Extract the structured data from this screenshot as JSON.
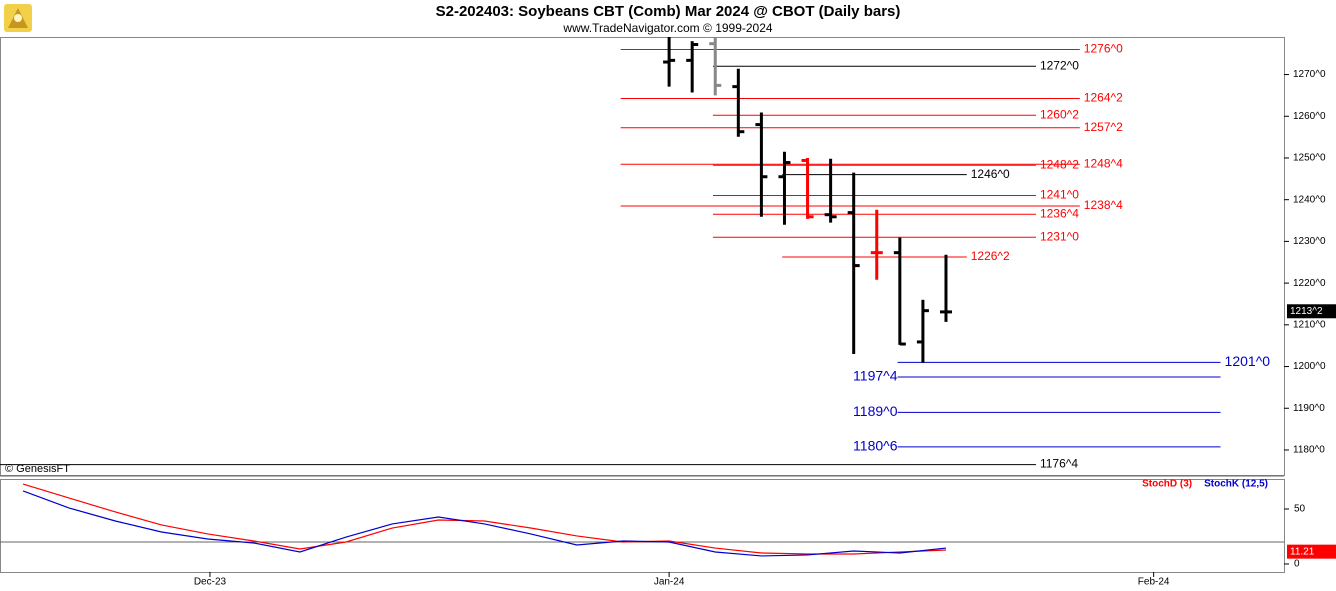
{
  "chart_data": [
    {
      "type": "ohlc",
      "title": "S2-202403:  Soybeans CBT (Comb) Mar 2024 @ CBOT  (Daily bars)",
      "subtitle": "www.TradeNavigator.com © 1999-2024",
      "annotation": "© GenesisFT",
      "x": [
        29,
        30,
        31,
        32,
        33,
        34,
        35,
        36,
        37,
        38,
        39,
        40,
        41
      ],
      "open": [
        1273,
        1273.4,
        1277.4,
        1267.1,
        1258,
        1245.5,
        1249.4,
        1236.4,
        1236.9,
        1227.3,
        1227.3,
        1205.9,
        1213.1
      ],
      "high": [
        1279,
        1278,
        1279,
        1271.4,
        1260.9,
        1251.5,
        1250,
        1249.8,
        1246.5,
        1237.6,
        1230.9,
        1216,
        1226.8
      ],
      "low": [
        1267.1,
        1265.7,
        1265,
        1255.1,
        1235.9,
        1234,
        1235.4,
        1234.5,
        1203,
        1220.8,
        1205.2,
        1200.9,
        1210.7
      ],
      "close": [
        1273.4,
        1277.2,
        1267.4,
        1256.3,
        1245.5,
        1248.9,
        1235.9,
        1235.9,
        1224.2,
        1227.3,
        1205.4,
        1213.4,
        1213.1
      ],
      "bar_colors": [
        "#000000",
        "#000000",
        "#888888",
        "#000000",
        "#000000",
        "#000000",
        "#ff0000",
        "#000000",
        "#000000",
        "#ff0000",
        "#000000",
        "#000000",
        "#000000"
      ],
      "levels": [
        {
          "value": 1276,
          "label": "1276^0",
          "color": "#ff0000",
          "from": 26.9,
          "to": 46.8,
          "label_at": "end"
        },
        {
          "value": 1272,
          "label": "1272^0",
          "color": "#000000",
          "from": 30.9,
          "to": 44.9,
          "label_at": "end"
        },
        {
          "value": 1264.25,
          "label": "1264^2",
          "color": "#ff0000",
          "from": 26.9,
          "to": 46.8,
          "label_at": "end"
        },
        {
          "value": 1260.25,
          "label": "1260^2",
          "color": "#ff0000",
          "from": 30.9,
          "to": 44.9,
          "label_at": "end"
        },
        {
          "value": 1257.25,
          "label": "1257^2",
          "color": "#ff0000",
          "from": 26.9,
          "to": 46.8,
          "label_at": "end"
        },
        {
          "value": 1248.25,
          "label": "1248^2",
          "color": "#ff0000",
          "from": 30.9,
          "to": 44.9,
          "label_at": "end"
        },
        {
          "value": 1248.5,
          "label": "1248^4",
          "color": "#ff0000",
          "from": 26.9,
          "to": 46.8,
          "label_at": "end"
        },
        {
          "value": 1246,
          "label": "1246^0",
          "color": "#000000",
          "from": 33.9,
          "to": 41.9,
          "label_at": "end"
        },
        {
          "value": 1241,
          "label": "1241^0",
          "color": "#ff0000",
          "from": 30.9,
          "to": 44.9,
          "label_at": "end"
        },
        {
          "value": 1238.5,
          "label": "1238^4",
          "color": "#ff0000",
          "from": 26.9,
          "to": 46.8,
          "label_at": "end"
        },
        {
          "value": 1236.5,
          "label": "1236^4",
          "color": "#ff0000",
          "from": 30.9,
          "to": 44.9,
          "label_at": "end"
        },
        {
          "value": 1231,
          "label": "1231^0",
          "color": "#ff0000",
          "from": 30.9,
          "to": 44.9,
          "label_at": "end"
        },
        {
          "value": 1226.25,
          "label": "1226^2",
          "color": "#ff0000",
          "from": 33.9,
          "to": 41.9,
          "label_at": "end"
        },
        {
          "value": 1201,
          "label": "1201^0",
          "color": "#0000cc",
          "from": 38.9,
          "to": 52.9,
          "label_at": "end"
        },
        {
          "value": 1197.5,
          "label": "1197^4",
          "color": "#0000cc",
          "from": 38.9,
          "to": 52.9,
          "label_at": "start"
        },
        {
          "value": 1189,
          "label": "1189^0",
          "color": "#0000cc",
          "from": 38.9,
          "to": 52.9,
          "label_at": "start"
        },
        {
          "value": 1180.75,
          "label": "1180^6",
          "color": "#0000cc",
          "from": 38.9,
          "to": 52.9,
          "label_at": "start"
        },
        {
          "value": 1176.5,
          "label": "1176^4",
          "color": "#000000",
          "from": 0,
          "to": 44.9,
          "label_at": "end"
        }
      ],
      "last_price": {
        "value": 1213.25,
        "label": "1213^2"
      },
      "xlim": [
        0,
        55.65
      ],
      "ylim": [
        1174,
        1279
      ],
      "yticks": [
        {
          "value": 1180,
          "label": "1180^0"
        },
        {
          "value": 1190,
          "label": "1190^0"
        },
        {
          "value": 1200,
          "label": "1200^0"
        },
        {
          "value": 1210,
          "label": "1210^0"
        },
        {
          "value": 1220,
          "label": "1220^0"
        },
        {
          "value": 1230,
          "label": "1230^0"
        },
        {
          "value": 1240,
          "label": "1240^0"
        },
        {
          "value": 1250,
          "label": "1250^0"
        },
        {
          "value": 1260,
          "label": "1260^0"
        },
        {
          "value": 1270,
          "label": "1270^0"
        }
      ]
    },
    {
      "type": "line",
      "x": [
        1,
        3,
        5,
        7,
        9,
        11,
        13,
        15,
        17,
        19,
        21,
        23,
        25,
        27,
        29,
        31,
        33,
        35,
        37,
        39,
        41
      ],
      "series": [
        {
          "name": "StochD (3)",
          "color": "#ff0000",
          "values": [
            72.7,
            60,
            47.3,
            35.5,
            27.3,
            20.9,
            13.6,
            20,
            32.7,
            40,
            39.1,
            32.7,
            25.5,
            20,
            20.9,
            14.5,
            10,
            9.1,
            9.1,
            10.9,
            12.7
          ]
        },
        {
          "name": "StochK (12,5)",
          "color": "#0000cc",
          "values": [
            66.4,
            50.9,
            39.1,
            29.1,
            22.7,
            19.1,
            10.9,
            24.5,
            36.4,
            42.7,
            36.4,
            27.3,
            17.3,
            20.9,
            20,
            10.9,
            7.3,
            8.2,
            11.8,
            10,
            14.5
          ]
        }
      ],
      "last_value": 11.21,
      "levels": [
        20,
        80
      ],
      "xlim": [
        0,
        55.65
      ],
      "ylim": [
        -7.3,
        77.3
      ],
      "yticks": [
        0,
        50
      ],
      "xticks": [
        {
          "value": 9.1,
          "label": "Dec-23"
        },
        {
          "value": 29,
          "label": "Jan-24"
        },
        {
          "value": 50,
          "label": "Feb-24"
        }
      ]
    }
  ]
}
